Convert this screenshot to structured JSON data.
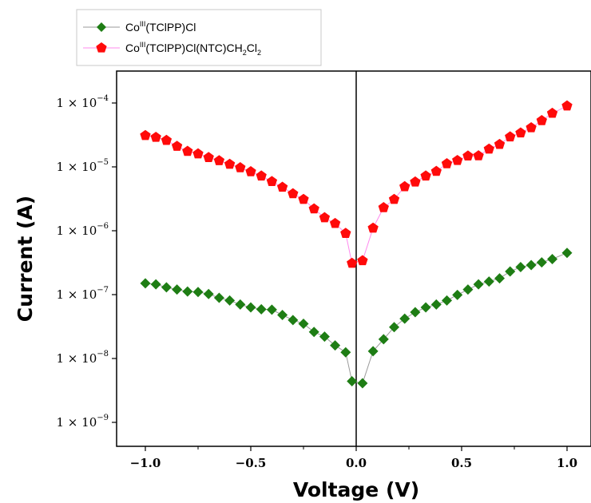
{
  "chart_data": {
    "type": "scatter",
    "xlabel": "Voltage (V)",
    "ylabel": "Current (A)",
    "xlim": [
      -1.15,
      1.15
    ],
    "ylim": [
      2.5e-10,
      0.00035
    ],
    "yscale": "log",
    "x_ticks": [
      {
        "value": -1.0,
        "label": "−1.0"
      },
      {
        "value": -0.5,
        "label": "−0.5"
      },
      {
        "value": 0.0,
        "label": "0.0"
      },
      {
        "value": 0.5,
        "label": "0.5"
      },
      {
        "value": 1.0,
        "label": "1.0"
      }
    ],
    "y_ticks": [
      {
        "value": 1e-09,
        "base": "1 × 10",
        "exp": "−9"
      },
      {
        "value": 1e-08,
        "base": "1 × 10",
        "exp": "−8"
      },
      {
        "value": 1e-07,
        "base": "1 × 10",
        "exp": "−7"
      },
      {
        "value": 1e-06,
        "base": "1 × 10",
        "exp": "−6"
      },
      {
        "value": 1e-05,
        "base": "1 × 10",
        "exp": "−5"
      },
      {
        "value": 0.0001,
        "base": "1 × 10",
        "exp": "−4"
      }
    ],
    "legend_position": "top-left, outside plot",
    "series": [
      {
        "name": "Co(III)(TClPP)Cl",
        "legend_parts": [
          {
            "t": "Co",
            "s": "n"
          },
          {
            "t": "III",
            "s": "sup"
          },
          {
            "t": "(TClPP)Cl",
            "s": "n"
          }
        ],
        "marker": "diamond",
        "color": "#1e7d14",
        "line_color": "#9a9a9a",
        "x": [
          -1.0,
          -0.95,
          -0.9,
          -0.85,
          -0.8,
          -0.75,
          -0.7,
          -0.65,
          -0.6,
          -0.55,
          -0.5,
          -0.45,
          -0.4,
          -0.35,
          -0.3,
          -0.25,
          -0.2,
          -0.15,
          -0.1,
          -0.05,
          -0.02,
          0.03,
          0.08,
          0.13,
          0.18,
          0.23,
          0.28,
          0.33,
          0.38,
          0.43,
          0.48,
          0.53,
          0.58,
          0.63,
          0.68,
          0.73,
          0.78,
          0.83,
          0.88,
          0.93,
          1.0
        ],
        "y": [
          1.5e-07,
          1.45e-07,
          1.3e-07,
          1.2e-07,
          1.12e-07,
          1.1e-07,
          1.02e-07,
          8.9e-08,
          8.1e-08,
          7e-08,
          6.3e-08,
          5.9e-08,
          5.8e-08,
          4.8e-08,
          4e-08,
          3.5e-08,
          2.6e-08,
          2.2e-08,
          1.6e-08,
          1.25e-08,
          4.4e-09,
          4.1e-09,
          1.3e-08,
          2e-08,
          3.1e-08,
          4.2e-08,
          5.3e-08,
          6.3e-08,
          7e-08,
          8.1e-08,
          9.9e-08,
          1.2e-07,
          1.45e-07,
          1.6e-07,
          1.8e-07,
          2.3e-07,
          2.7e-07,
          2.9e-07,
          3.2e-07,
          3.6e-07,
          4.5e-07
        ]
      },
      {
        "name": "Co(III)(TClPP)Cl(NTC)CH2Cl2",
        "legend_parts": [
          {
            "t": "Co",
            "s": "n"
          },
          {
            "t": "III",
            "s": "sup"
          },
          {
            "t": "(TClPP)Cl(NTC)CH",
            "s": "n"
          },
          {
            "t": "2",
            "s": "sub"
          },
          {
            "t": "Cl",
            "s": "n"
          },
          {
            "t": "2",
            "s": "sub"
          }
        ],
        "marker": "pentagon",
        "color": "#ff0a0a",
        "line_color": "#ff88ee",
        "x": [
          -1.0,
          -0.95,
          -0.9,
          -0.85,
          -0.8,
          -0.75,
          -0.7,
          -0.65,
          -0.6,
          -0.55,
          -0.5,
          -0.45,
          -0.4,
          -0.35,
          -0.3,
          -0.25,
          -0.2,
          -0.15,
          -0.1,
          -0.05,
          -0.02,
          0.03,
          0.08,
          0.13,
          0.18,
          0.23,
          0.28,
          0.33,
          0.38,
          0.43,
          0.48,
          0.53,
          0.58,
          0.63,
          0.68,
          0.73,
          0.78,
          0.83,
          0.88,
          0.93,
          1.0
        ],
        "y": [
          3.1e-05,
          2.9e-05,
          2.6e-05,
          2.1e-05,
          1.75e-05,
          1.6e-05,
          1.4e-05,
          1.25e-05,
          1.1e-05,
          9.7e-06,
          8.4e-06,
          7.2e-06,
          5.9e-06,
          4.8e-06,
          3.8e-06,
          3.1e-06,
          2.2e-06,
          1.6e-06,
          1.3e-06,
          9.1e-07,
          3.1e-07,
          3.4e-07,
          1.1e-06,
          2.3e-06,
          3.1e-06,
          4.9e-06,
          5.8e-06,
          7.2e-06,
          8.5e-06,
          1.12e-05,
          1.26e-05,
          1.48e-05,
          1.49e-05,
          1.9e-05,
          2.25e-05,
          2.95e-05,
          3.4e-05,
          4.1e-05,
          5.3e-05,
          6.9e-05,
          9e-05
        ]
      }
    ]
  }
}
